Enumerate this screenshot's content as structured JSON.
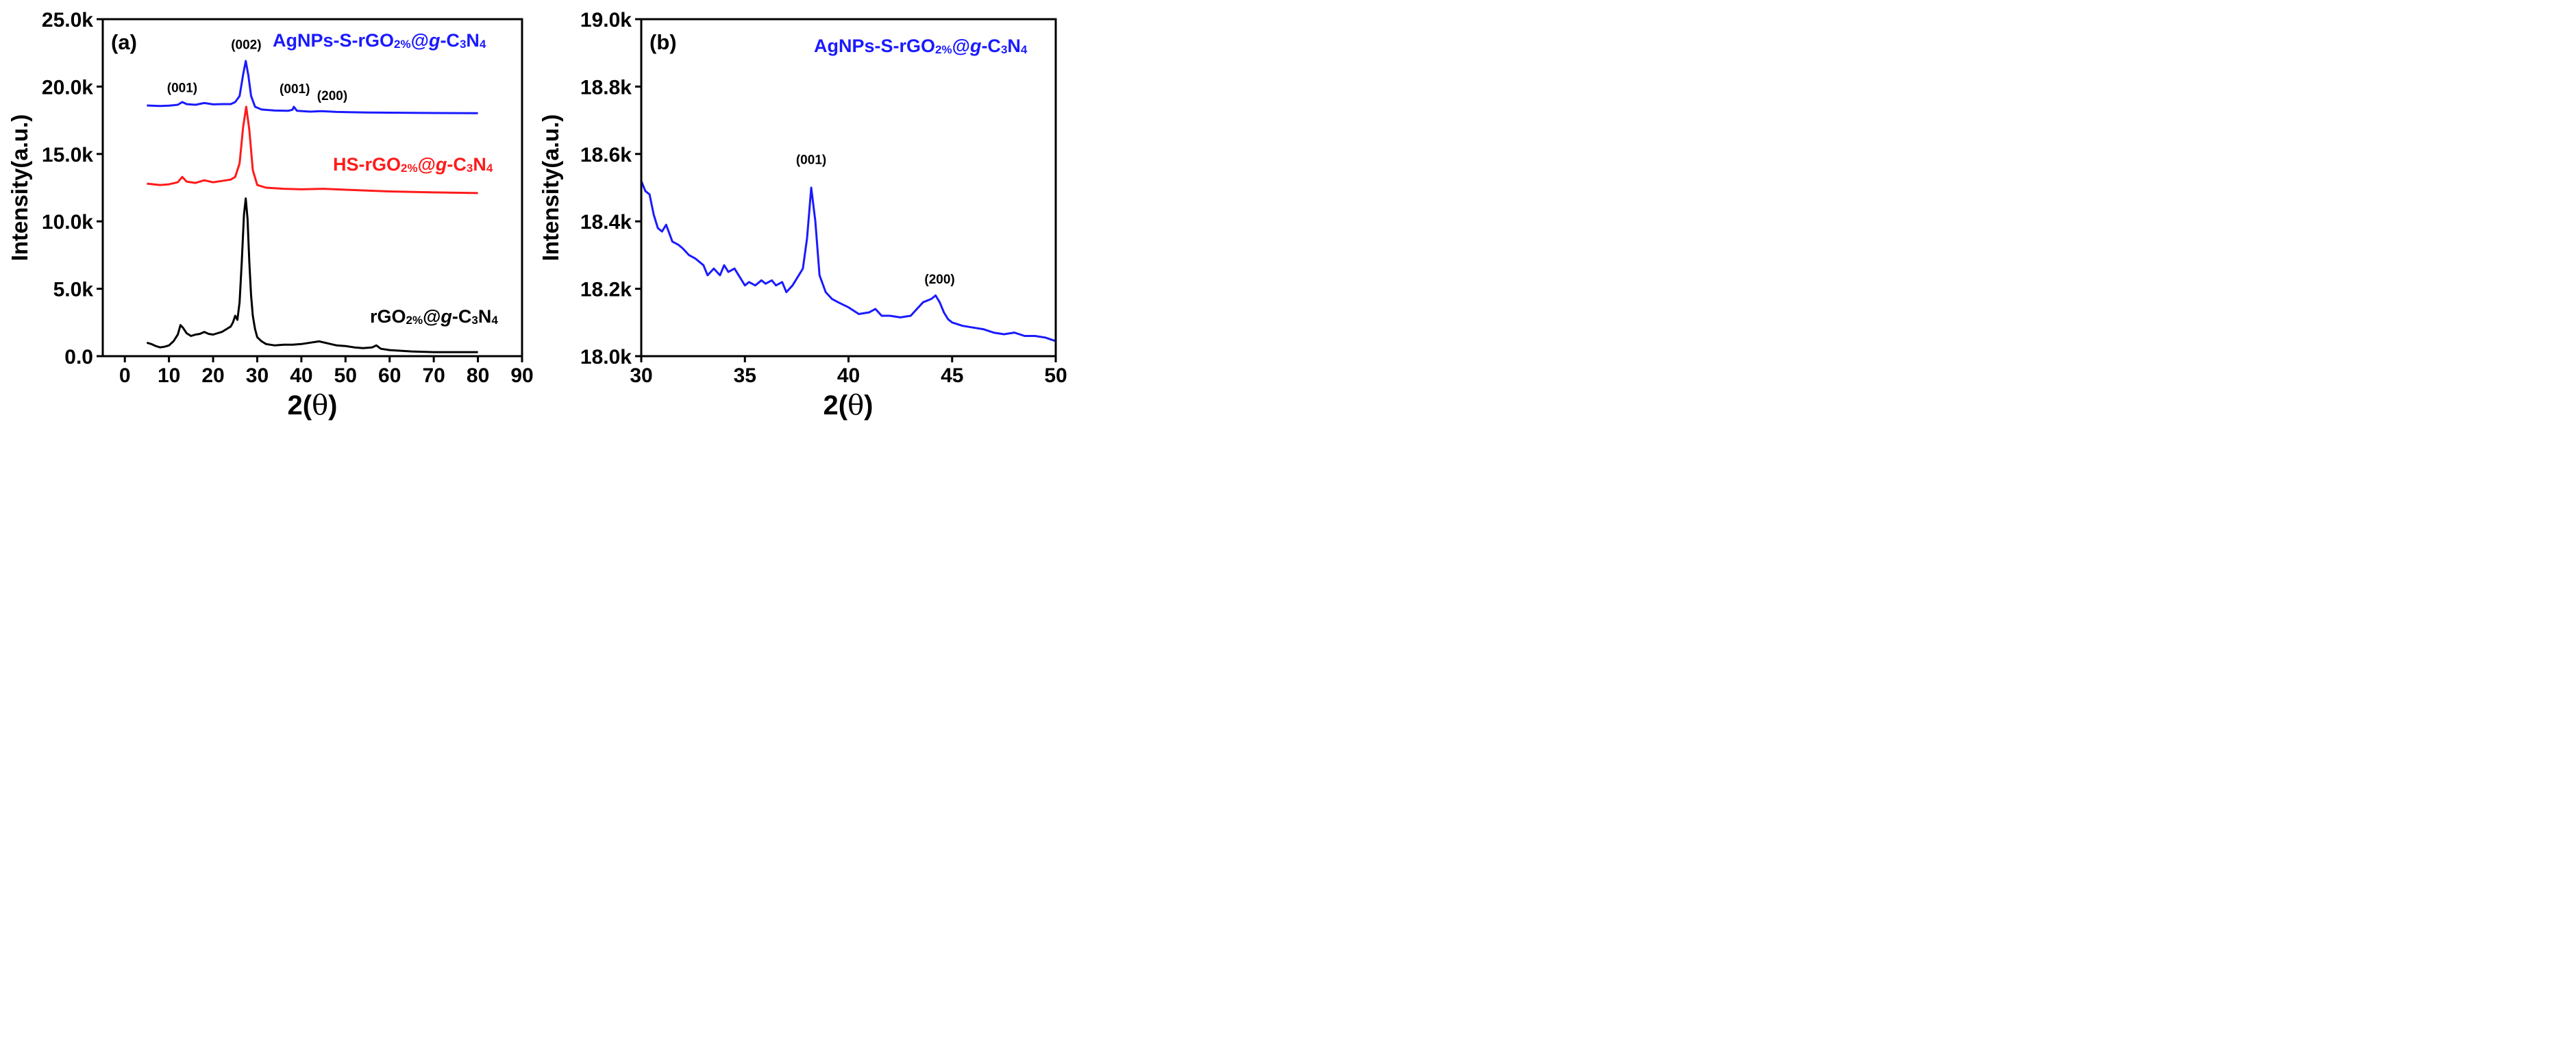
{
  "figure_labels": {
    "panel_a": "(a)",
    "panel_b": "(b)"
  },
  "chart_data": [
    {
      "type": "line",
      "panel": "(a)",
      "xlabel_prefix": "2(",
      "xlabel_symbol": "θ",
      "xlabel_suffix": ")",
      "ylabel": "Intensity(a.u.)",
      "xlim": [
        -5,
        90
      ],
      "ylim": [
        0,
        25000
      ],
      "xticks": [
        0,
        10,
        20,
        30,
        40,
        50,
        60,
        70,
        80,
        90
      ],
      "xtick_labels": [
        "0",
        "10",
        "20",
        "30",
        "40",
        "50",
        "60",
        "70",
        "80",
        "90"
      ],
      "yticks": [
        0,
        5000,
        10000,
        15000,
        20000,
        25000
      ],
      "ytick_labels": [
        "0.0",
        "5.0k",
        "10.0k",
        "15.0k",
        "20.0k",
        "25.0k"
      ],
      "series": [
        {
          "name": "AgNPs-S-rGO2%@g-C3N4",
          "label_parts": [
            "AgNPs-S-rGO",
            "2%",
            "@",
            "g",
            "-C",
            "3",
            "N",
            "4"
          ],
          "color": "#1a1aff",
          "x": [
            5,
            8,
            10,
            12,
            13,
            14,
            16,
            18,
            20,
            22,
            24,
            25,
            26,
            26.8,
            27.4,
            28,
            28.6,
            29.5,
            31,
            34,
            37,
            38,
            38.3,
            39,
            42,
            44.5,
            48,
            55,
            65,
            80
          ],
          "y": [
            18600,
            18560,
            18580,
            18650,
            18850,
            18700,
            18650,
            18780,
            18680,
            18700,
            18700,
            18850,
            19300,
            20900,
            21900,
            20800,
            19300,
            18500,
            18300,
            18220,
            18200,
            18280,
            18500,
            18200,
            18140,
            18180,
            18120,
            18080,
            18050,
            18030
          ]
        },
        {
          "name": "HS-rGO2%@g-C3N4",
          "label_parts": [
            "HS-rGO",
            "2%",
            "@",
            "g",
            "-C",
            "3",
            "N",
            "4"
          ],
          "color": "#ff1a1a",
          "x": [
            5,
            8,
            10,
            12,
            13,
            14,
            16,
            18,
            20,
            22,
            24,
            25,
            26,
            26.8,
            27.5,
            28.2,
            29,
            30,
            32,
            36,
            40,
            45,
            50,
            55,
            60,
            70,
            80
          ],
          "y": [
            12800,
            12700,
            12750,
            12900,
            13300,
            12950,
            12850,
            13050,
            12900,
            13000,
            13100,
            13300,
            14300,
            17000,
            18500,
            16800,
            13800,
            12700,
            12500,
            12420,
            12380,
            12420,
            12350,
            12280,
            12220,
            12150,
            12100
          ]
        },
        {
          "name": "rGO2%@g-C3N4",
          "label_parts": [
            "rGO",
            "2%",
            "@",
            "g",
            "-C",
            "3",
            "N",
            "4"
          ],
          "color": "#000000",
          "x": [
            5,
            6,
            7,
            8,
            9,
            10,
            11,
            12,
            12.6,
            13.2,
            14,
            15,
            16,
            17,
            18,
            19,
            20,
            21,
            22,
            23,
            24,
            24.5,
            25,
            25.5,
            26,
            26.5,
            27,
            27.4,
            27.8,
            28.2,
            28.6,
            29,
            29.5,
            30,
            31,
            32,
            34,
            36,
            38,
            40,
            42,
            44,
            46,
            48,
            50,
            52,
            54,
            56,
            57,
            58,
            60,
            65,
            70,
            75,
            80
          ],
          "y": [
            1000,
            900,
            750,
            650,
            700,
            800,
            1100,
            1600,
            2300,
            2100,
            1700,
            1500,
            1600,
            1650,
            1800,
            1650,
            1600,
            1700,
            1800,
            2000,
            2200,
            2500,
            3000,
            2700,
            4000,
            7000,
            10500,
            11700,
            10200,
            7000,
            4500,
            3000,
            2000,
            1400,
            1100,
            900,
            800,
            850,
            850,
            900,
            1000,
            1100,
            950,
            800,
            750,
            650,
            600,
            650,
            800,
            550,
            450,
            350,
            300,
            300,
            300
          ]
        }
      ],
      "peak_annotations": [
        {
          "text": "(001)",
          "x": 13,
          "y": 19600
        },
        {
          "text": "(002)",
          "x": 27.5,
          "y": 22800
        },
        {
          "text": "(001)",
          "x": 38.5,
          "y": 19500
        },
        {
          "text": "(200)",
          "x": 47,
          "y": 19000
        }
      ]
    },
    {
      "type": "line",
      "panel": "(b)",
      "xlabel_prefix": "2(",
      "xlabel_symbol": "θ",
      "xlabel_suffix": ")",
      "ylabel": "Intensity(a.u.)",
      "xlim": [
        30,
        50
      ],
      "ylim": [
        18000,
        19000
      ],
      "xticks": [
        30,
        35,
        40,
        45,
        50
      ],
      "xtick_labels": [
        "30",
        "35",
        "40",
        "45",
        "50"
      ],
      "yticks": [
        18000,
        18200,
        18400,
        18600,
        18800,
        19000
      ],
      "ytick_labels": [
        "18.0k",
        "18.2k",
        "18.4k",
        "18.6k",
        "18.8k",
        "19.0k"
      ],
      "series": [
        {
          "name": "AgNPs-S-rGO2%@g-C3N4",
          "label_parts": [
            "AgNPs-S-rGO",
            "2%",
            "@",
            "g",
            "-C",
            "3",
            "N",
            "4"
          ],
          "color": "#1a1aff",
          "x": [
            30,
            30.2,
            30.4,
            30.6,
            30.8,
            31,
            31.2,
            31.5,
            31.8,
            32,
            32.3,
            32.6,
            33,
            33.2,
            33.5,
            33.8,
            34,
            34.2,
            34.5,
            34.8,
            35,
            35.2,
            35.5,
            35.8,
            36,
            36.3,
            36.5,
            36.8,
            37,
            37.3,
            37.5,
            37.8,
            38,
            38.2,
            38.4,
            38.6,
            38.9,
            39.2,
            39.5,
            40,
            40.5,
            41,
            41.3,
            41.6,
            42,
            42.5,
            43,
            43.3,
            43.6,
            44,
            44.2,
            44.4,
            44.6,
            44.8,
            45,
            45.5,
            46,
            46.5,
            47,
            47.5,
            48,
            48.5,
            49,
            49.5,
            50
          ],
          "y": [
            18520,
            18490,
            18480,
            18420,
            18380,
            18370,
            18390,
            18340,
            18330,
            18320,
            18300,
            18290,
            18270,
            18240,
            18260,
            18240,
            18270,
            18250,
            18260,
            18230,
            18210,
            18220,
            18210,
            18225,
            18215,
            18225,
            18210,
            18220,
            18190,
            18210,
            18230,
            18260,
            18350,
            18500,
            18400,
            18240,
            18190,
            18170,
            18160,
            18145,
            18125,
            18130,
            18140,
            18120,
            18120,
            18115,
            18120,
            18140,
            18160,
            18170,
            18180,
            18160,
            18130,
            18110,
            18100,
            18090,
            18085,
            18080,
            18070,
            18065,
            18070,
            18060,
            18060,
            18055,
            18045
          ]
        }
      ],
      "peak_annotations": [
        {
          "text": "(001)",
          "x": 38.2,
          "y": 18570
        },
        {
          "text": "(200)",
          "x": 44.4,
          "y": 18215
        }
      ]
    }
  ]
}
